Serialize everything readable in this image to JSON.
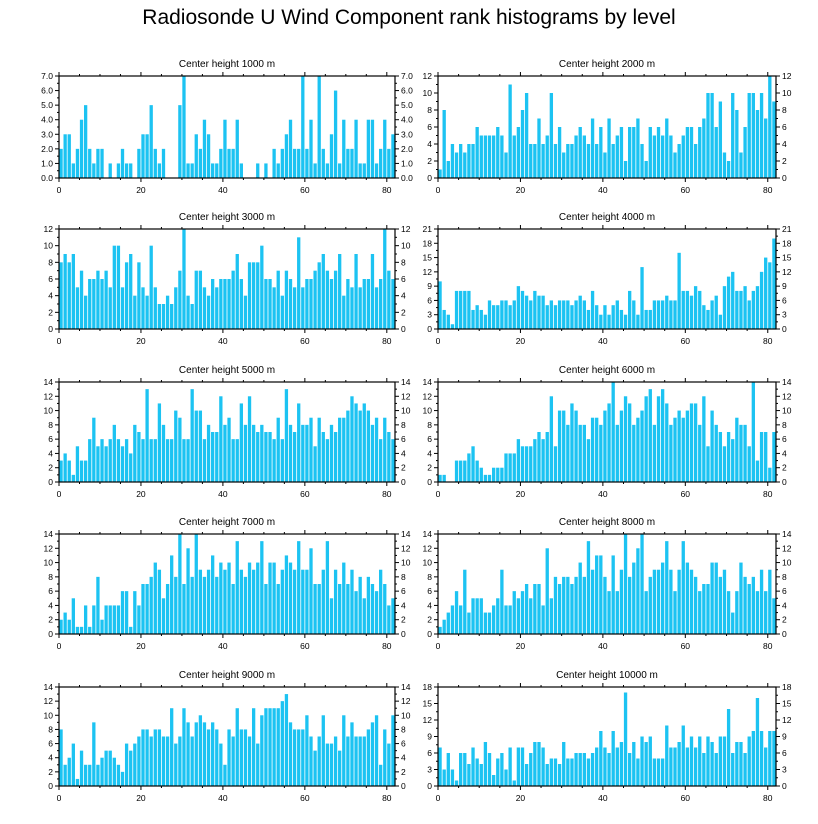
{
  "chart_data": {
    "title": "Radiosonde U Wind Component rank histograms by level",
    "type": "bar",
    "bar_color": "#1cc3f2",
    "panels": [
      {
        "title": "Center height 1000 m",
        "ylim": [
          0,
          7
        ],
        "yticks": [
          "0.0",
          "1.0",
          "2.0",
          "3.0",
          "4.0",
          "5.0",
          "6.0",
          "7.0"
        ],
        "xlim": [
          0,
          82
        ],
        "xticks": [
          "0",
          "20",
          "40",
          "60",
          "80"
        ],
        "values": [
          2,
          3,
          3,
          1,
          2,
          4,
          5,
          2,
          1,
          2,
          2,
          0,
          1,
          0,
          1,
          2,
          1,
          1,
          0,
          2,
          3,
          3,
          5,
          2,
          1,
          2,
          0,
          0,
          0,
          5,
          7,
          1,
          1,
          3,
          2,
          4,
          3,
          1,
          1,
          2,
          4,
          2,
          2,
          4,
          1,
          0,
          0,
          0,
          1,
          0,
          1,
          0,
          2,
          1,
          2,
          3,
          4,
          2,
          2,
          7,
          2,
          4,
          1,
          7,
          2,
          1,
          3,
          6,
          1,
          4,
          2,
          2,
          4,
          1,
          1,
          4,
          4,
          1,
          2,
          4,
          2,
          3
        ]
      },
      {
        "title": "Center height 2000 m",
        "ylim": [
          0,
          12
        ],
        "yticks": [
          "0",
          "2",
          "4",
          "6",
          "8",
          "10",
          "12"
        ],
        "xlim": [
          0,
          82
        ],
        "xticks": [
          "0",
          "20",
          "40",
          "60",
          "80"
        ],
        "values": [
          1,
          8,
          2,
          4,
          3,
          4,
          3,
          4,
          4,
          6,
          5,
          5,
          5,
          5,
          6,
          5,
          3,
          11,
          5,
          6,
          8,
          10,
          4,
          4,
          7,
          4,
          5,
          10,
          4,
          6,
          3,
          4,
          4,
          5,
          6,
          5,
          4,
          7,
          4,
          6,
          3,
          7,
          4,
          5,
          6,
          2,
          6,
          6,
          7,
          4,
          2,
          6,
          5,
          6,
          5,
          7,
          5,
          3,
          4,
          5,
          6,
          6,
          4,
          6,
          7,
          10,
          10,
          6,
          9,
          3,
          2,
          10,
          8,
          3,
          6,
          10,
          10,
          8,
          10,
          7,
          12,
          9
        ]
      },
      {
        "title": "Center height 3000 m",
        "ylim": [
          0,
          12
        ],
        "yticks": [
          "0",
          "2",
          "4",
          "6",
          "8",
          "10",
          "12"
        ],
        "xlim": [
          0,
          82
        ],
        "xticks": [
          "0",
          "20",
          "40",
          "60",
          "80"
        ],
        "values": [
          8,
          9,
          8,
          9,
          5,
          7,
          4,
          6,
          6,
          7,
          6,
          7,
          5,
          10,
          10,
          5,
          8,
          9,
          4,
          8,
          5,
          4,
          10,
          5,
          3,
          3,
          4,
          3,
          5,
          7,
          12,
          4,
          3,
          7,
          7,
          5,
          4,
          6,
          5,
          6,
          6,
          6,
          7,
          9,
          6,
          4,
          8,
          8,
          8,
          10,
          6,
          6,
          5,
          7,
          4,
          7,
          6,
          5,
          11,
          5,
          6,
          6,
          7,
          8,
          9,
          7,
          6,
          7,
          9,
          4,
          6,
          5,
          9,
          5,
          6,
          6,
          9,
          5,
          6,
          12,
          7,
          6
        ]
      },
      {
        "title": "Center height 4000 m",
        "ylim": [
          0,
          21
        ],
        "yticks": [
          "0",
          "3",
          "6",
          "9",
          "12",
          "15",
          "18",
          "21"
        ],
        "xlim": [
          0,
          82
        ],
        "xticks": [
          "0",
          "20",
          "40",
          "60",
          "80"
        ],
        "values": [
          10,
          4,
          3,
          1,
          8,
          8,
          8,
          8,
          4,
          5,
          4,
          3,
          6,
          5,
          5,
          6,
          6,
          5,
          6,
          9,
          8,
          7,
          6,
          8,
          7,
          7,
          5,
          6,
          5,
          6,
          6,
          6,
          5,
          6,
          7,
          6,
          4,
          8,
          5,
          3,
          5,
          3,
          5,
          6,
          4,
          3,
          8,
          6,
          3,
          13,
          4,
          4,
          6,
          6,
          6,
          7,
          6,
          6,
          16,
          8,
          8,
          7,
          9,
          8,
          5,
          4,
          6,
          7,
          3,
          9,
          11,
          12,
          8,
          8,
          9,
          6,
          8,
          9,
          12,
          15,
          14,
          19
        ]
      },
      {
        "title": "Center height 5000 m",
        "ylim": [
          0,
          14
        ],
        "yticks": [
          "0",
          "2",
          "4",
          "6",
          "8",
          "10",
          "12",
          "14"
        ],
        "xlim": [
          0,
          82
        ],
        "xticks": [
          "0",
          "20",
          "40",
          "60",
          "80"
        ],
        "values": [
          3,
          4,
          3,
          1,
          5,
          3,
          3,
          6,
          9,
          5,
          6,
          5,
          6,
          8,
          6,
          5,
          6,
          4,
          8,
          7,
          6,
          13,
          6,
          6,
          11,
          8,
          6,
          6,
          10,
          9,
          6,
          6,
          13,
          10,
          10,
          6,
          8,
          7,
          7,
          12,
          8,
          9,
          6,
          6,
          11,
          8,
          12,
          8,
          7,
          8,
          7,
          7,
          6,
          9,
          6,
          13,
          8,
          7,
          11,
          8,
          8,
          9,
          5,
          9,
          7,
          6,
          8,
          7,
          9,
          9,
          10,
          12,
          11,
          10,
          11,
          10,
          8,
          9,
          6,
          9,
          7,
          6
        ]
      },
      {
        "title": "Center height 6000 m",
        "ylim": [
          0,
          14
        ],
        "yticks": [
          "0",
          "2",
          "4",
          "6",
          "8",
          "10",
          "12",
          "14"
        ],
        "xlim": [
          0,
          82
        ],
        "xticks": [
          "0",
          "20",
          "40",
          "60",
          "80"
        ],
        "values": [
          1,
          1,
          0,
          0,
          3,
          3,
          3,
          4,
          5,
          3,
          2,
          1,
          1,
          2,
          2,
          2,
          4,
          4,
          4,
          6,
          5,
          5,
          5,
          6,
          7,
          6,
          7,
          12,
          5,
          10,
          10,
          8,
          11,
          10,
          8,
          8,
          6,
          9,
          9,
          8,
          10,
          11,
          14,
          8,
          10,
          12,
          11,
          8,
          9,
          10,
          12,
          13,
          8,
          12,
          13,
          11,
          8,
          9,
          10,
          9,
          10,
          11,
          11,
          8,
          12,
          5,
          10,
          8,
          7,
          5,
          7,
          6,
          9,
          8,
          8,
          5,
          14,
          3,
          7,
          7,
          2,
          7
        ]
      },
      {
        "title": "Center height 7000 m",
        "ylim": [
          0,
          14
        ],
        "yticks": [
          "0",
          "2",
          "4",
          "6",
          "8",
          "10",
          "12",
          "14"
        ],
        "xlim": [
          0,
          82
        ],
        "xticks": [
          "0",
          "20",
          "40",
          "60",
          "80"
        ],
        "values": [
          2,
          3,
          2,
          5,
          1,
          1,
          4,
          1,
          4,
          8,
          2,
          4,
          4,
          4,
          4,
          6,
          6,
          1,
          6,
          4,
          7,
          7,
          8,
          10,
          9,
          5,
          7,
          11,
          8,
          14,
          7,
          12,
          8,
          14,
          9,
          8,
          9,
          11,
          8,
          10,
          9,
          10,
          7,
          13,
          9,
          8,
          10,
          9,
          10,
          13,
          7,
          10,
          10,
          7,
          9,
          11,
          10,
          9,
          13,
          9,
          9,
          12,
          7,
          7,
          9,
          13,
          5,
          9,
          7,
          10,
          7,
          9,
          6,
          8,
          5,
          8,
          7,
          6,
          9,
          7,
          4,
          5
        ]
      },
      {
        "title": "Center height 8000 m",
        "ylim": [
          0,
          14
        ],
        "yticks": [
          "0",
          "2",
          "4",
          "6",
          "8",
          "10",
          "12",
          "14"
        ],
        "xlim": [
          0,
          82
        ],
        "xticks": [
          "0",
          "20",
          "40",
          "60",
          "80"
        ],
        "values": [
          1,
          2,
          3,
          4,
          6,
          4,
          9,
          3,
          5,
          5,
          5,
          3,
          3,
          4,
          5,
          9,
          4,
          4,
          6,
          5,
          6,
          7,
          5,
          7,
          7,
          4,
          12,
          5,
          8,
          7,
          8,
          8,
          7,
          8,
          10,
          8,
          13,
          9,
          11,
          11,
          8,
          6,
          11,
          6,
          9,
          14,
          8,
          10,
          12,
          14,
          6,
          8,
          9,
          9,
          10,
          13,
          9,
          6,
          9,
          13,
          10,
          9,
          8,
          6,
          7,
          7,
          10,
          10,
          8,
          9,
          6,
          3,
          6,
          10,
          8,
          7,
          8,
          6,
          9,
          6,
          9,
          5
        ]
      },
      {
        "title": "Center height 9000 m",
        "ylim": [
          0,
          14
        ],
        "yticks": [
          "0",
          "2",
          "4",
          "6",
          "8",
          "10",
          "12",
          "14"
        ],
        "xlim": [
          0,
          82
        ],
        "xticks": [
          "0",
          "20",
          "40",
          "60",
          "80"
        ],
        "values": [
          8,
          3,
          4,
          6,
          1,
          5,
          3,
          3,
          9,
          3,
          4,
          5,
          5,
          4,
          3,
          2,
          6,
          5,
          6,
          7,
          8,
          8,
          7,
          8,
          8,
          7,
          7,
          11,
          6,
          7,
          11,
          9,
          7,
          9,
          10,
          9,
          8,
          9,
          8,
          6,
          3,
          8,
          7,
          11,
          8,
          8,
          7,
          11,
          6,
          10,
          11,
          11,
          11,
          11,
          12,
          13,
          9,
          8,
          8,
          8,
          10,
          7,
          5,
          7,
          10,
          6,
          6,
          7,
          5,
          10,
          7,
          9,
          7,
          7,
          7,
          8,
          9,
          10,
          3,
          8,
          6,
          10
        ]
      },
      {
        "title": "Center height 10000 m",
        "ylim": [
          0,
          18
        ],
        "yticks": [
          "0",
          "3",
          "6",
          "9",
          "12",
          "15",
          "18"
        ],
        "xlim": [
          0,
          82
        ],
        "xticks": [
          "0",
          "20",
          "40",
          "60",
          "80"
        ],
        "values": [
          7,
          3,
          6,
          3,
          1,
          6,
          6,
          4,
          7,
          5,
          4,
          8,
          6,
          2,
          5,
          6,
          3,
          7,
          1,
          7,
          7,
          4,
          6,
          8,
          8,
          7,
          4,
          5,
          5,
          4,
          8,
          5,
          5,
          6,
          6,
          6,
          5,
          6,
          7,
          10,
          7,
          6,
          10,
          7,
          8,
          17,
          6,
          8,
          5,
          9,
          8,
          9,
          5,
          5,
          5,
          11,
          7,
          7,
          8,
          11,
          7,
          9,
          7,
          9,
          6,
          9,
          8,
          6,
          9,
          9,
          14,
          6,
          8,
          8,
          6,
          9,
          10,
          16,
          10,
          7,
          10,
          10
        ]
      }
    ]
  }
}
